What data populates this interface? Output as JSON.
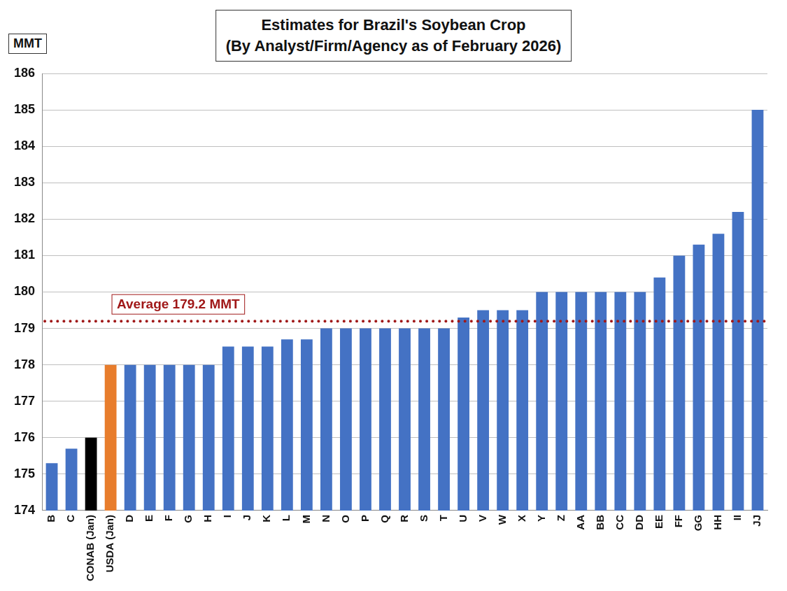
{
  "chart_data": {
    "type": "bar",
    "title": "Estimates for Brazil's Soybean Crop",
    "subtitle": "(By Analyst/Firm/Agency as of February 2026)",
    "y_label": "MMT",
    "categories": [
      "B",
      "C",
      "CONAB (Jan)",
      "USDA (Jan)",
      "D",
      "E",
      "F",
      "G",
      "H",
      "I",
      "J",
      "K",
      "L",
      "M",
      "N",
      "O",
      "P",
      "Q",
      "R",
      "S",
      "T",
      "U",
      "V",
      "W",
      "X",
      "Y",
      "Z",
      "AA",
      "BB",
      "CC",
      "DD",
      "EE",
      "FF",
      "GG",
      "HH",
      "II",
      "JJ"
    ],
    "values": [
      175.3,
      175.7,
      176.0,
      178.0,
      178.0,
      178.0,
      178.0,
      178.0,
      178.0,
      178.5,
      178.5,
      178.5,
      178.7,
      178.7,
      179.0,
      179.0,
      179.0,
      179.0,
      179.0,
      179.0,
      179.0,
      179.3,
      179.5,
      179.5,
      179.5,
      180.0,
      180.0,
      180.0,
      180.0,
      180.0,
      180.0,
      180.4,
      181.0,
      181.3,
      181.6,
      182.2,
      185.0
    ],
    "colors": [
      "#4472c4",
      "#4472c4",
      "#000000",
      "#e87d2c",
      "#4472c4",
      "#4472c4",
      "#4472c4",
      "#4472c4",
      "#4472c4",
      "#4472c4",
      "#4472c4",
      "#4472c4",
      "#4472c4",
      "#4472c4",
      "#4472c4",
      "#4472c4",
      "#4472c4",
      "#4472c4",
      "#4472c4",
      "#4472c4",
      "#4472c4",
      "#4472c4",
      "#4472c4",
      "#4472c4",
      "#4472c4",
      "#4472c4",
      "#4472c4",
      "#4472c4",
      "#4472c4",
      "#4472c4",
      "#4472c4",
      "#4472c4",
      "#4472c4",
      "#4472c4",
      "#4472c4",
      "#4472c4",
      "#4472c4"
    ],
    "ylim": [
      174,
      186
    ],
    "yticks": [
      174,
      175,
      176,
      177,
      178,
      179,
      180,
      181,
      182,
      183,
      184,
      185,
      186
    ],
    "grid": true,
    "annotations": [
      {
        "text": "Average 179.2 MMT",
        "value": 179.2,
        "color": "#a01818",
        "line_style": "dotted"
      }
    ]
  }
}
